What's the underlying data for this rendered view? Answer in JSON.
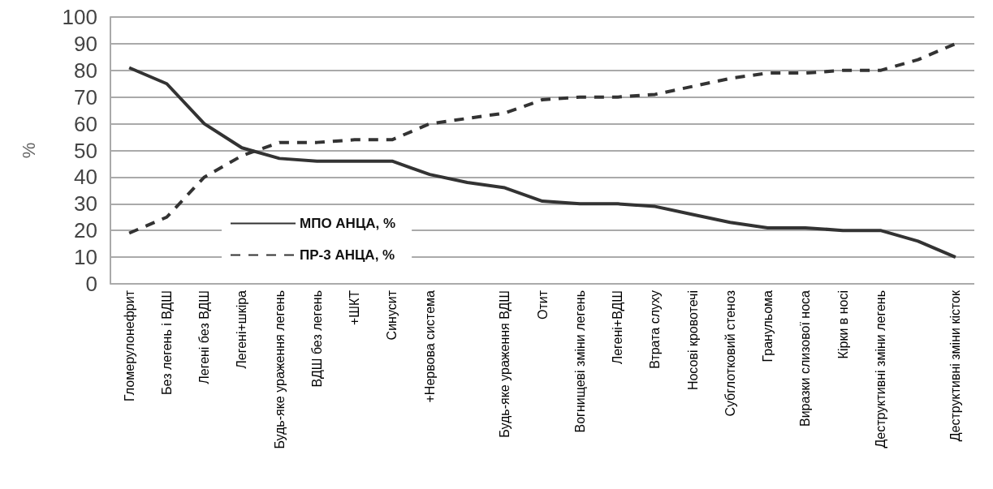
{
  "chart_data": {
    "type": "line",
    "ylabel": "%",
    "categories": [
      "Гломерулонефрит",
      "Без легень і ВДШ",
      "Легені без ВДШ",
      "Легені+шкіра",
      "Будь-яке ураження легень",
      "ВДШ без легень",
      "+ШКТ",
      "Синусит",
      "+Нервова система",
      null,
      "Будь-яке ураження ВДШ",
      "Отит",
      "Вогнищеві зміни легень",
      "Легені+ВДШ",
      "Втрата слуху",
      "Носові кровотечі",
      "Субглотковий стеноз",
      "Гранульома",
      "Виразки слизової носа",
      "Кірки в носі",
      "Деструктивні зміни легень",
      null,
      "Деструктивні зміни кісток"
    ],
    "series": [
      {
        "name": "МПО АНЦА, %",
        "color": "#333333",
        "line_style": "solid",
        "values": [
          81,
          75,
          60,
          51,
          47,
          46,
          46,
          46,
          41,
          38,
          36,
          31,
          30,
          30,
          29,
          26,
          23,
          21,
          21,
          20,
          20,
          16,
          10
        ]
      },
      {
        "name": "ПР-3 АНЦА, %",
        "color": "#333333",
        "line_style": "dashed",
        "values": [
          19,
          25,
          40,
          48,
          53,
          53,
          54,
          54,
          60,
          62,
          64,
          69,
          70,
          70,
          71,
          74,
          77,
          79,
          79,
          80,
          80,
          84,
          90
        ]
      }
    ],
    "ylim": [
      0,
      100
    ],
    "yticks": [
      0,
      10,
      20,
      30,
      40,
      50,
      60,
      70,
      80,
      90,
      100
    ],
    "grid": "y",
    "legend": "bottom left",
    "marker": "none"
  }
}
